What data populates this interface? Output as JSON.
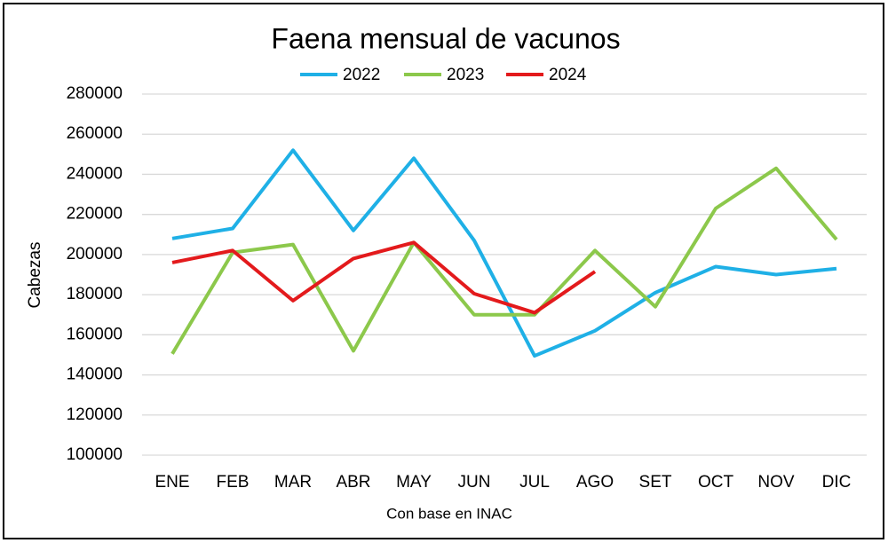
{
  "chart_data": {
    "type": "line",
    "title": "Faena mensual de vacunos",
    "y_label": "Cabezas",
    "x_label": "Con base en INAC",
    "categories": [
      "ENE",
      "FEB",
      "MAR",
      "ABR",
      "MAY",
      "JUN",
      "JUL",
      "AGO",
      "SET",
      "OCT",
      "NOV",
      "DIC"
    ],
    "series": [
      {
        "name": "2022",
        "color": "#1fb0e6",
        "values": [
          208000,
          213000,
          252000,
          212000,
          248000,
          207000,
          149500,
          162000,
          181000,
          194000,
          190000,
          193000
        ]
      },
      {
        "name": "2023",
        "color": "#8cc84b",
        "values": [
          150500,
          201000,
          205000,
          152000,
          206000,
          170000,
          170000,
          202000,
          174000,
          223000,
          243000,
          207500
        ]
      },
      {
        "name": "2024",
        "color": "#e31a1c",
        "values": [
          196000,
          202000,
          177000,
          198000,
          206000,
          180500,
          171000,
          191500,
          null,
          null,
          null,
          null
        ]
      }
    ],
    "ylim": [
      100000,
      280000
    ],
    "yticks": [
      100000,
      120000,
      140000,
      160000,
      180000,
      200000,
      220000,
      240000,
      260000,
      280000
    ],
    "grid": true,
    "legend": "top"
  }
}
